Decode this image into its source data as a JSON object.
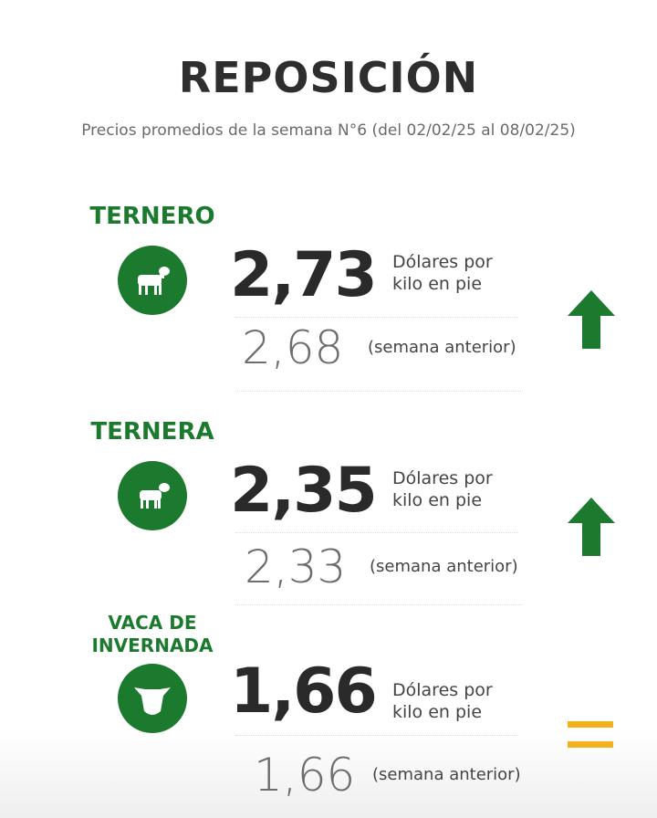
{
  "title": "REPOSICIÓN",
  "subtitle": "Precios promedios de la semana N°6 (del 02/02/25 al 08/02/25)",
  "items": [
    {
      "name": "TERNERO",
      "price": "2,73",
      "unit": "Dólares por kilo en pie",
      "previous": "2,68",
      "previous_label": "(semana anterior)"
    },
    {
      "name": "TERNERA",
      "price": "2,35",
      "unit": "Dólares por kilo en pie",
      "previous": "2,33",
      "previous_label": "(semana anterior)"
    },
    {
      "name": "VACA DE INVERNADA",
      "price": "1,66",
      "unit": "Dólares por kilo en pie",
      "previous": "1,66",
      "previous_label": "(semana anterior)"
    }
  ]
}
